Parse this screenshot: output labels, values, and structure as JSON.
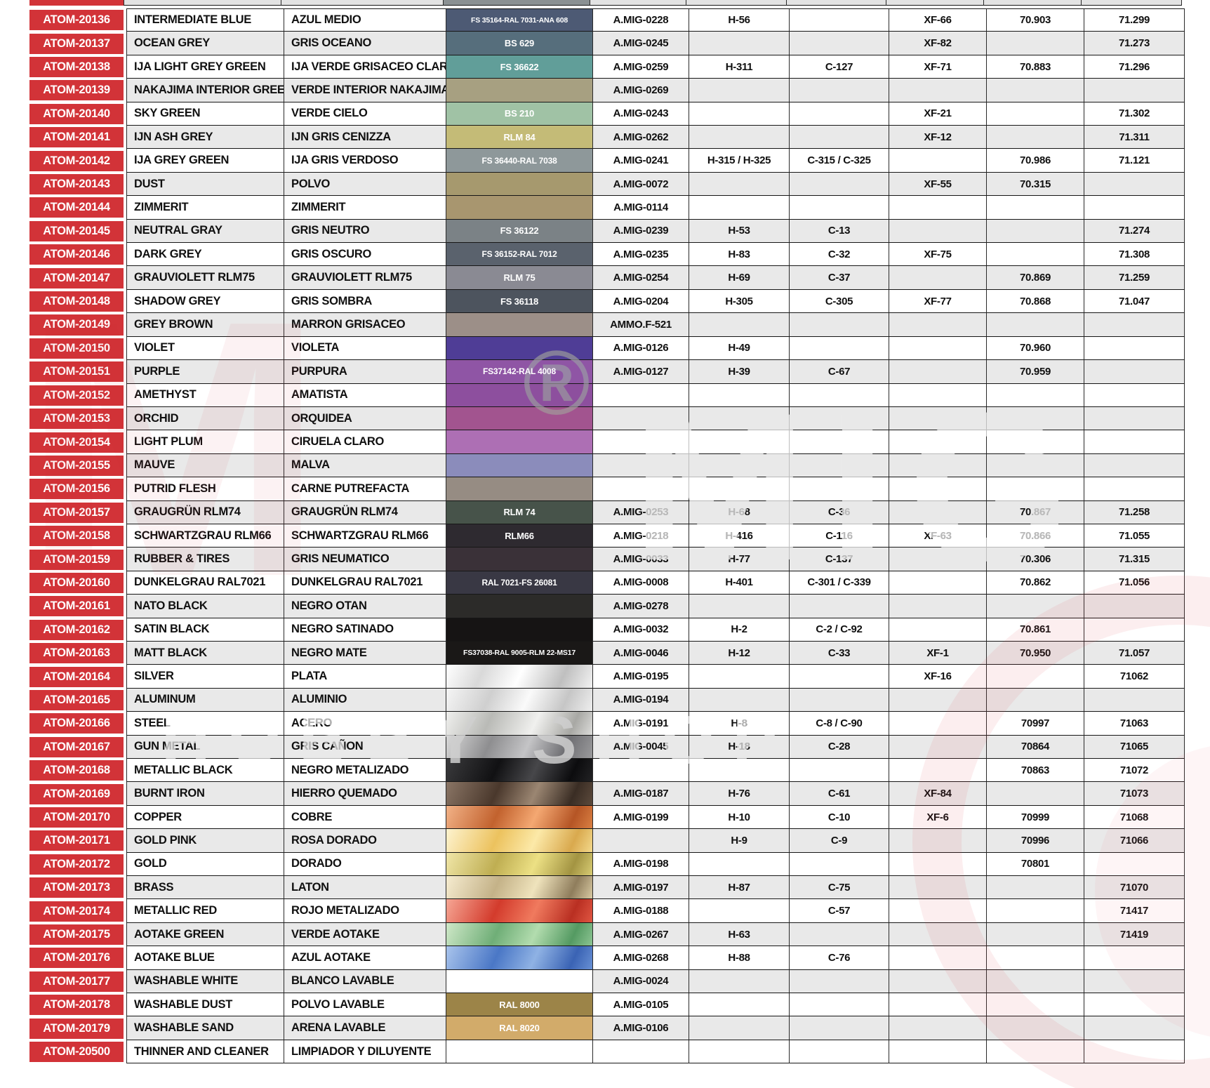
{
  "colors": {
    "atom_red": "#d23338",
    "row_alt_grey": "#e9e9e9",
    "row_white": "#ffffff",
    "grid_line": "#1a1a1a",
    "partial_swatch_grey": "#8b9193",
    "partial_cell_grey": "#e3e3e3"
  },
  "watermark": {
    "hobby_shop": "HOBBY SHOP",
    "big_m": "M",
    "mig": "MIG",
    "registered": "®"
  },
  "table": {
    "rows": [
      {
        "code": "ATOM-20136",
        "en": "INTERMEDIATE BLUE",
        "es": "AZUL MEDIO",
        "swatch": {
          "label": "FS 35164-RAL 7031-ANA 608",
          "bg": "#4d5a74"
        },
        "amig": "A.MIG-0228",
        "h": "H-56",
        "c": "",
        "xf": "XF-66",
        "v70": "70.903",
        "v71": "71.299"
      },
      {
        "code": "ATOM-20137",
        "en": "OCEAN GREY",
        "es": "GRIS OCEANO",
        "swatch": {
          "label": "BS 629",
          "bg": "#566e7c"
        },
        "amig": "A.MIG-0245",
        "h": "",
        "c": "",
        "xf": "XF-82",
        "v70": "",
        "v71": "71.273"
      },
      {
        "code": "ATOM-20138",
        "en": "IJA LIGHT GREY GREEN",
        "es": "IJA VERDE GRISACEO CLARO",
        "swatch": {
          "label": "FS 36622",
          "bg": "#619e99"
        },
        "amig": "A.MIG-0259",
        "h": "H-311",
        "c": "C-127",
        "xf": "XF-71",
        "v70": "70.883",
        "v71": "71.296"
      },
      {
        "code": "ATOM-20139",
        "en": "NAKAJIMA INTERIOR GREEN",
        "es": "VERDE INTERIOR NAKAJIMA",
        "swatch": {
          "label": "",
          "bg": "#a7a081"
        },
        "amig": "A.MIG-0269",
        "h": "",
        "c": "",
        "xf": "",
        "v70": "",
        "v71": ""
      },
      {
        "code": "ATOM-20140",
        "en": "SKY GREEN",
        "es": "VERDE CIELO",
        "swatch": {
          "label": "BS 210",
          "bg": "#a0c2a5"
        },
        "amig": "A.MIG-0243",
        "h": "",
        "c": "",
        "xf": "XF-21",
        "v70": "",
        "v71": "71.302"
      },
      {
        "code": "ATOM-20141",
        "en": "IJN ASH GREY",
        "es": "IJN GRIS CENIZZA",
        "swatch": {
          "label": "RLM 84",
          "bg": "#c4bb77"
        },
        "amig": "A.MIG-0262",
        "h": "",
        "c": "",
        "xf": "XF-12",
        "v70": "",
        "v71": "71.311"
      },
      {
        "code": "ATOM-20142",
        "en": "IJA GREY GREEN",
        "es": "IJA GRIS VERDOSO",
        "swatch": {
          "label": "FS 36440-RAL 7038",
          "bg": "#8e989a"
        },
        "amig": "A.MIG-0241",
        "h": "H-315 / H-325",
        "c": "C-315 / C-325",
        "xf": "",
        "v70": "70.986",
        "v71": "71.121"
      },
      {
        "code": "ATOM-20143",
        "en": "DUST",
        "es": "POLVO",
        "swatch": {
          "label": "",
          "bg": "#a6996e"
        },
        "amig": "A.MIG-0072",
        "h": "",
        "c": "",
        "xf": "XF-55",
        "v70": "70.315",
        "v71": ""
      },
      {
        "code": "ATOM-20144",
        "en": "ZIMMERIT",
        "es": "ZIMMERIT",
        "swatch": {
          "label": "",
          "bg": "#a8966f"
        },
        "amig": "A.MIG-0114",
        "h": "",
        "c": "",
        "xf": "",
        "v70": "",
        "v71": ""
      },
      {
        "code": "ATOM-20145",
        "en": "NEUTRAL GRAY",
        "es": "GRIS NEUTRO",
        "swatch": {
          "label": "FS 36122",
          "bg": "#7b8286"
        },
        "amig": "A.MIG-0239",
        "h": "H-53",
        "c": "C-13",
        "xf": "",
        "v70": "",
        "v71": "71.274"
      },
      {
        "code": "ATOM-20146",
        "en": "DARK GREY",
        "es": "GRIS OSCURO",
        "swatch": {
          "label": "FS 36152-RAL 7012",
          "bg": "#5a626d"
        },
        "amig": "A.MIG-0235",
        "h": "H-83",
        "c": "C-32",
        "xf": "XF-75",
        "v70": "",
        "v71": "71.308"
      },
      {
        "code": "ATOM-20147",
        "en": "GRAUVIOLETT RLM75",
        "es": "GRAUVIOLETT RLM75",
        "swatch": {
          "label": "RLM 75",
          "bg": "#8a8a93"
        },
        "amig": "A.MIG-0254",
        "h": "H-69",
        "c": "C-37",
        "xf": "",
        "v70": "70.869",
        "v71": "71.259"
      },
      {
        "code": "ATOM-20148",
        "en": "SHADOW GREY",
        "es": "GRIS SOMBRA",
        "swatch": {
          "label": "FS 36118",
          "bg": "#4d545e"
        },
        "amig": "A.MIG-0204",
        "h": "H-305",
        "c": "C-305",
        "xf": "XF-77",
        "v70": "70.868",
        "v71": "71.047"
      },
      {
        "code": "ATOM-20149",
        "en": "GREY BROWN",
        "es": "MARRON GRISACEO",
        "swatch": {
          "label": "",
          "bg": "#9c8f88"
        },
        "amig": "AMMO.F-521",
        "h": "",
        "c": "",
        "xf": "",
        "v70": "",
        "v71": ""
      },
      {
        "code": "ATOM-20150",
        "en": "VIOLET",
        "es": "VIOLETA",
        "swatch": {
          "label": "",
          "bg": "#4f3d96"
        },
        "amig": "A.MIG-0126",
        "h": "H-49",
        "c": "",
        "xf": "",
        "v70": "70.960",
        "v71": ""
      },
      {
        "code": "ATOM-20151",
        "en": "PURPLE",
        "es": "PURPURA",
        "swatch": {
          "label": "FS37142-RAL 4008",
          "bg": "#8f55a5"
        },
        "amig": "A.MIG-0127",
        "h": "H-39",
        "c": "C-67",
        "xf": "",
        "v70": "70.959",
        "v71": ""
      },
      {
        "code": "ATOM-20152",
        "en": "AMETHYST",
        "es": "AMATISTA",
        "swatch": {
          "label": "",
          "bg": "#8d4f9e"
        },
        "amig": "",
        "h": "",
        "c": "",
        "xf": "",
        "v70": "",
        "v71": ""
      },
      {
        "code": "ATOM-20153",
        "en": "ORCHID",
        "es": "ORQUIDEA",
        "swatch": {
          "label": "",
          "bg": "#a2548f"
        },
        "amig": "",
        "h": "",
        "c": "",
        "xf": "",
        "v70": "",
        "v71": ""
      },
      {
        "code": "ATOM-20154",
        "en": "LIGHT PLUM",
        "es": "CIRUELA CLARO",
        "swatch": {
          "label": "",
          "bg": "#ad6fb4"
        },
        "amig": "",
        "h": "",
        "c": "",
        "xf": "",
        "v70": "",
        "v71": ""
      },
      {
        "code": "ATOM-20155",
        "en": "MAUVE",
        "es": "MALVA",
        "swatch": {
          "label": "",
          "bg": "#8b8cbb"
        },
        "amig": "",
        "h": "",
        "c": "",
        "xf": "",
        "v70": "",
        "v71": ""
      },
      {
        "code": "ATOM-20156",
        "en": "PUTRID FLESH",
        "es": "CARNE PUTREFACTA",
        "swatch": {
          "label": "",
          "bg": "#968c83"
        },
        "amig": "",
        "h": "",
        "c": "",
        "xf": "",
        "v70": "",
        "v71": ""
      },
      {
        "code": "ATOM-20157",
        "en": "GRAUGRÜN RLM74",
        "es": "GRAUGRÜN RLM74",
        "swatch": {
          "label": "RLM 74",
          "bg": "#47534a"
        },
        "amig": "A.MIG-0253",
        "h": "H-68",
        "c": "C-36",
        "xf": "",
        "v70": "70.867",
        "v71": "71.258"
      },
      {
        "code": "ATOM-20158",
        "en": "SCHWARTZGRAU RLM66",
        "es": "SCHWARTZGRAU RLM66",
        "swatch": {
          "label": "RLM66",
          "bg": "#2e2a30"
        },
        "amig": "A.MIG-0218",
        "h": "H-416",
        "c": "C-116",
        "xf": "XF-63",
        "v70": "70.866",
        "v71": "71.055"
      },
      {
        "code": "ATOM-20159",
        "en": "RUBBER & TIRES",
        "es": "GRIS NEUMATICO",
        "swatch": {
          "label": "",
          "bg": "#3a3138"
        },
        "amig": "A.MIG-0033",
        "h": "H-77",
        "c": "C-137",
        "xf": "",
        "v70": "70.306",
        "v71": "71.315"
      },
      {
        "code": "ATOM-20160",
        "en": "DUNKELGRAU RAL7021",
        "es": "DUNKELGRAU RAL7021",
        "swatch": {
          "label": "RAL 7021-FS 26081",
          "bg": "#393844"
        },
        "amig": "A.MIG-0008",
        "h": "H-401",
        "c": "C-301 / C-339",
        "xf": "",
        "v70": "70.862",
        "v71": "71.056"
      },
      {
        "code": "ATOM-20161",
        "en": "NATO BLACK",
        "es": "NEGRO OTAN",
        "swatch": {
          "label": "",
          "bg": "#2c2b29"
        },
        "amig": "A.MIG-0278",
        "h": "",
        "c": "",
        "xf": "",
        "v70": "",
        "v71": ""
      },
      {
        "code": "ATOM-20162",
        "en": "SATIN BLACK",
        "es": "NEGRO SATINADO",
        "swatch": {
          "label": "",
          "bg": "#161414"
        },
        "amig": "A.MIG-0032",
        "h": "H-2",
        "c": "C-2 / C-92",
        "xf": "",
        "v70": "70.861",
        "v71": ""
      },
      {
        "code": "ATOM-20163",
        "en": "MATT BLACK",
        "es": "NEGRO MATE",
        "swatch": {
          "label": "FS37038-RAL 9005-RLM 22-MS17",
          "bg": "#1a1817"
        },
        "amig": "A.MIG-0046",
        "h": "H-12",
        "c": "C-33",
        "xf": "XF-1",
        "v70": "70.950",
        "v71": "71.057"
      },
      {
        "code": "ATOM-20164",
        "en": "SILVER",
        "es": "PLATA",
        "swatch": {
          "label": "",
          "bg": "linear-gradient(115deg,#ffffff,#d9d9d9 25%,#ffffff 50%,#bfbfbf 78%,#f2f2f2)"
        },
        "amig": "A.MIG-0195",
        "h": "",
        "c": "",
        "xf": "XF-16",
        "v70": "",
        "v71": "71062"
      },
      {
        "code": "ATOM-20165",
        "en": "ALUMINUM",
        "es": "ALUMINIO",
        "swatch": {
          "label": "",
          "bg": "linear-gradient(115deg,#f5f5f5,#cfcfcf 30%,#fafafa 55%,#c6c6c6 80%,#eeeeee)"
        },
        "amig": "A.MIG-0194",
        "h": "",
        "c": "",
        "xf": "",
        "v70": "",
        "v71": ""
      },
      {
        "code": "ATOM-20166",
        "en": "STEEL",
        "es": "ACERO",
        "swatch": {
          "label": "",
          "bg": "linear-gradient(115deg,#efefed,#b9bab6 30%,#f0f0ee 60%,#a8a8a4 85%,#dcdcda)"
        },
        "amig": "A.MIG-0191",
        "h": "H-8",
        "c": "C-8 / C-90",
        "xf": "",
        "v70": "70997",
        "v71": "71063"
      },
      {
        "code": "ATOM-20167",
        "en": "GUN METAL",
        "es": "GRIS CAÑON",
        "swatch": {
          "label": "",
          "bg": "linear-gradient(115deg,#d8d8d8,#8e8e90 30%,#c4c4c6 55%,#6f6f73 80%,#9a9a9c)"
        },
        "amig": "A.MIG-0045",
        "h": "H-18",
        "c": "C-28",
        "xf": "",
        "v70": "70864",
        "v71": "71065"
      },
      {
        "code": "ATOM-20168",
        "en": "METALLIC BLACK",
        "es": "NEGRO METALIZADO",
        "swatch": {
          "label": "",
          "bg": "linear-gradient(115deg,#3a3a3c,#111113 35%,#47474a 60%,#0c0c0e 85%,#222224)"
        },
        "amig": "",
        "h": "",
        "c": "",
        "xf": "",
        "v70": "70863",
        "v71": "71072"
      },
      {
        "code": "ATOM-20169",
        "en": "BURNT IRON",
        "es": "HIERRO QUEMADO",
        "swatch": {
          "label": "",
          "bg": "linear-gradient(115deg,#8a7565,#4a382c 35%,#9b8672 60%,#3a2d24 85%,#5c4a3c)"
        },
        "amig": "A.MIG-0187",
        "h": "H-76",
        "c": "C-61",
        "xf": "XF-84",
        "v70": "",
        "v71": "71073"
      },
      {
        "code": "ATOM-20170",
        "en": "COPPER",
        "es": "COBRE",
        "swatch": {
          "label": "",
          "bg": "linear-gradient(115deg,#f2b287,#c2622e 35%,#f4a872 60%,#b55525 85%,#d97f42)"
        },
        "amig": "A.MIG-0199",
        "h": "H-10",
        "c": "C-10",
        "xf": "XF-6",
        "v70": "70999",
        "v71": "71068"
      },
      {
        "code": "ATOM-20171",
        "en": "GOLD PINK",
        "es": "ROSA DORADO",
        "swatch": {
          "label": "",
          "bg": "linear-gradient(115deg,#fdf3cf,#ecc25e 35%,#fce9a8 60%,#d9a94e 85%,#f3d98c)"
        },
        "amig": "",
        "h": "H-9",
        "c": "C-9",
        "xf": "",
        "v70": "70996",
        "v71": "71066"
      },
      {
        "code": "ATOM-20172",
        "en": "GOLD",
        "es": "DORADO",
        "swatch": {
          "label": "",
          "bg": "linear-gradient(115deg,#f0e6a8,#bfae52 35%,#ece084 60%,#a39442 85%,#d8cc74)"
        },
        "amig": "A.MIG-0198",
        "h": "",
        "c": "",
        "xf": "",
        "v70": "70801",
        "v71": ""
      },
      {
        "code": "ATOM-20173",
        "en": "BRASS",
        "es": "LATON",
        "swatch": {
          "label": "",
          "bg": "linear-gradient(115deg,#f6ecd0,#c4b288 35%,#efe3bc 60%,#8f7d5c 85%,#d8c9a2)"
        },
        "amig": "A.MIG-0197",
        "h": "H-87",
        "c": "C-75",
        "xf": "",
        "v70": "",
        "v71": "71070"
      },
      {
        "code": "ATOM-20174",
        "en": "METALLIC RED",
        "es": "ROJO METALIZADO",
        "swatch": {
          "label": "",
          "bg": "linear-gradient(115deg,#f6a694,#d33b2c 35%,#f07a5e 60%,#b92f22 85%,#e05642)"
        },
        "amig": "A.MIG-0188",
        "h": "",
        "c": "C-57",
        "xf": "",
        "v70": "",
        "v71": "71417"
      },
      {
        "code": "ATOM-20175",
        "en": "AOTAKE GREEN",
        "es": "VERDE AOTAKE",
        "swatch": {
          "label": "",
          "bg": "linear-gradient(115deg,#cfe8c8,#6fae77 35%,#b2dcae 60%,#549a62 85%,#8cc492)"
        },
        "amig": "A.MIG-0267",
        "h": "H-63",
        "c": "",
        "xf": "",
        "v70": "",
        "v71": "71419"
      },
      {
        "code": "ATOM-20176",
        "en": "AOTAKE BLUE",
        "es": "AZUL AOTAKE",
        "swatch": {
          "label": "",
          "bg": "linear-gradient(115deg,#a9c4ec,#4a77c6 35%,#8fb2e4 60%,#3a63b4 85%,#6890d4)"
        },
        "amig": "A.MIG-0268",
        "h": "H-88",
        "c": "C-76",
        "xf": "",
        "v70": "",
        "v71": ""
      },
      {
        "code": "ATOM-20177",
        "en": "WASHABLE WHITE",
        "es": "BLANCO LAVABLE",
        "swatch": {
          "label": "",
          "bg": "#ffffff"
        },
        "amig": "A.MIG-0024",
        "h": "",
        "c": "",
        "xf": "",
        "v70": "",
        "v71": ""
      },
      {
        "code": "ATOM-20178",
        "en": "WASHABLE DUST",
        "es": "POLVO LAVABLE",
        "swatch": {
          "label": "RAL 8000",
          "bg": "#9c8448"
        },
        "amig": "A.MIG-0105",
        "h": "",
        "c": "",
        "xf": "",
        "v70": "",
        "v71": ""
      },
      {
        "code": "ATOM-20179",
        "en": "WASHABLE SAND",
        "es": "ARENA LAVABLE",
        "swatch": {
          "label": "RAL 8020",
          "bg": "#d2ab6a"
        },
        "amig": "A.MIG-0106",
        "h": "",
        "c": "",
        "xf": "",
        "v70": "",
        "v71": ""
      },
      {
        "code": "ATOM-20500",
        "en": "THINNER AND  CLEANER",
        "es": "LIMPIADOR Y DILUYENTE",
        "swatch": {
          "label": "",
          "bg": "#ffffff"
        },
        "amig": "",
        "h": "",
        "c": "",
        "xf": "",
        "v70": "",
        "v71": ""
      }
    ]
  }
}
